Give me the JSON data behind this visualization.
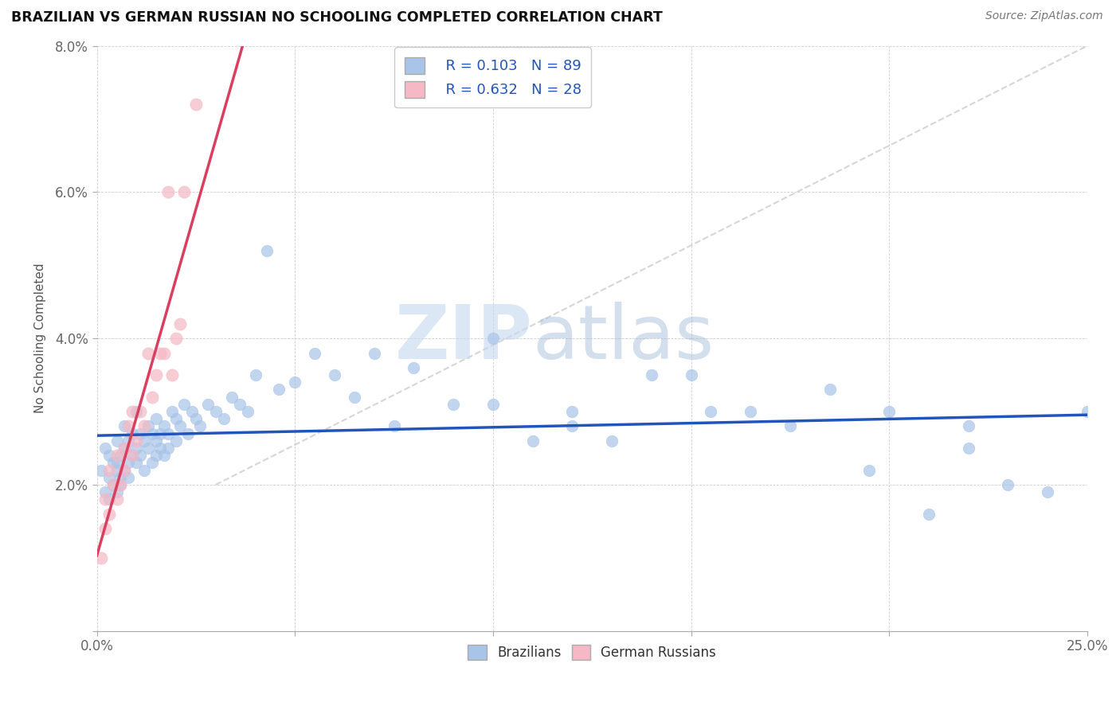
{
  "title": "BRAZILIAN VS GERMAN RUSSIAN NO SCHOOLING COMPLETED CORRELATION CHART",
  "source": "Source: ZipAtlas.com",
  "ylabel": "No Schooling Completed",
  "xlim": [
    0,
    0.25
  ],
  "ylim": [
    0,
    0.08
  ],
  "xtick_positions": [
    0.0,
    0.05,
    0.1,
    0.15,
    0.2,
    0.25
  ],
  "xtick_labels": [
    "0.0%",
    "",
    "",
    "",
    "",
    "25.0%"
  ],
  "ytick_positions": [
    0.0,
    0.02,
    0.04,
    0.06,
    0.08
  ],
  "ytick_labels": [
    "",
    "2.0%",
    "4.0%",
    "6.0%",
    "8.0%"
  ],
  "legend_r1": "R = 0.103",
  "legend_n1": "N = 89",
  "legend_r2": "R = 0.632",
  "legend_n2": "N = 28",
  "watermark": "ZIPatlas",
  "blue_color": "#a8c4e8",
  "pink_color": "#f5b8c4",
  "blue_line_color": "#2255bb",
  "pink_line_color": "#d94060",
  "ref_line_color": "#cccccc",
  "title_color": "#111111",
  "r_value_color": "#2255bb",
  "background_color": "#ffffff",
  "brazilians_x": [
    0.001,
    0.002,
    0.002,
    0.003,
    0.003,
    0.003,
    0.004,
    0.004,
    0.005,
    0.005,
    0.005,
    0.005,
    0.006,
    0.006,
    0.006,
    0.007,
    0.007,
    0.007,
    0.008,
    0.008,
    0.008,
    0.009,
    0.009,
    0.01,
    0.01,
    0.01,
    0.011,
    0.011,
    0.012,
    0.012,
    0.013,
    0.013,
    0.014,
    0.014,
    0.015,
    0.015,
    0.015,
    0.016,
    0.016,
    0.017,
    0.017,
    0.018,
    0.018,
    0.019,
    0.02,
    0.02,
    0.021,
    0.022,
    0.023,
    0.024,
    0.025,
    0.026,
    0.028,
    0.03,
    0.032,
    0.034,
    0.036,
    0.038,
    0.04,
    0.043,
    0.046,
    0.05,
    0.055,
    0.06,
    0.065,
    0.07,
    0.075,
    0.08,
    0.09,
    0.1,
    0.11,
    0.12,
    0.13,
    0.14,
    0.155,
    0.165,
    0.175,
    0.185,
    0.195,
    0.21,
    0.22,
    0.23,
    0.24,
    0.25,
    0.1,
    0.12,
    0.15,
    0.2,
    0.22
  ],
  "brazilians_y": [
    0.022,
    0.025,
    0.019,
    0.021,
    0.024,
    0.018,
    0.023,
    0.02,
    0.022,
    0.026,
    0.019,
    0.023,
    0.021,
    0.024,
    0.02,
    0.025,
    0.022,
    0.028,
    0.023,
    0.026,
    0.021,
    0.024,
    0.027,
    0.023,
    0.025,
    0.03,
    0.024,
    0.027,
    0.026,
    0.022,
    0.028,
    0.025,
    0.027,
    0.023,
    0.026,
    0.024,
    0.029,
    0.027,
    0.025,
    0.028,
    0.024,
    0.027,
    0.025,
    0.03,
    0.026,
    0.029,
    0.028,
    0.031,
    0.027,
    0.03,
    0.029,
    0.028,
    0.031,
    0.03,
    0.029,
    0.032,
    0.031,
    0.03,
    0.035,
    0.052,
    0.033,
    0.034,
    0.038,
    0.035,
    0.032,
    0.038,
    0.028,
    0.036,
    0.031,
    0.031,
    0.026,
    0.028,
    0.026,
    0.035,
    0.03,
    0.03,
    0.028,
    0.033,
    0.022,
    0.016,
    0.025,
    0.02,
    0.019,
    0.03,
    0.04,
    0.03,
    0.035,
    0.03,
    0.028
  ],
  "german_x": [
    0.001,
    0.002,
    0.002,
    0.003,
    0.003,
    0.004,
    0.005,
    0.005,
    0.006,
    0.007,
    0.007,
    0.008,
    0.009,
    0.009,
    0.01,
    0.011,
    0.012,
    0.013,
    0.014,
    0.015,
    0.016,
    0.017,
    0.018,
    0.019,
    0.02,
    0.021,
    0.022,
    0.025
  ],
  "german_y": [
    0.01,
    0.014,
    0.018,
    0.016,
    0.022,
    0.02,
    0.018,
    0.024,
    0.02,
    0.025,
    0.022,
    0.028,
    0.024,
    0.03,
    0.026,
    0.03,
    0.028,
    0.038,
    0.032,
    0.035,
    0.038,
    0.038,
    0.06,
    0.035,
    0.04,
    0.042,
    0.06,
    0.072
  ]
}
